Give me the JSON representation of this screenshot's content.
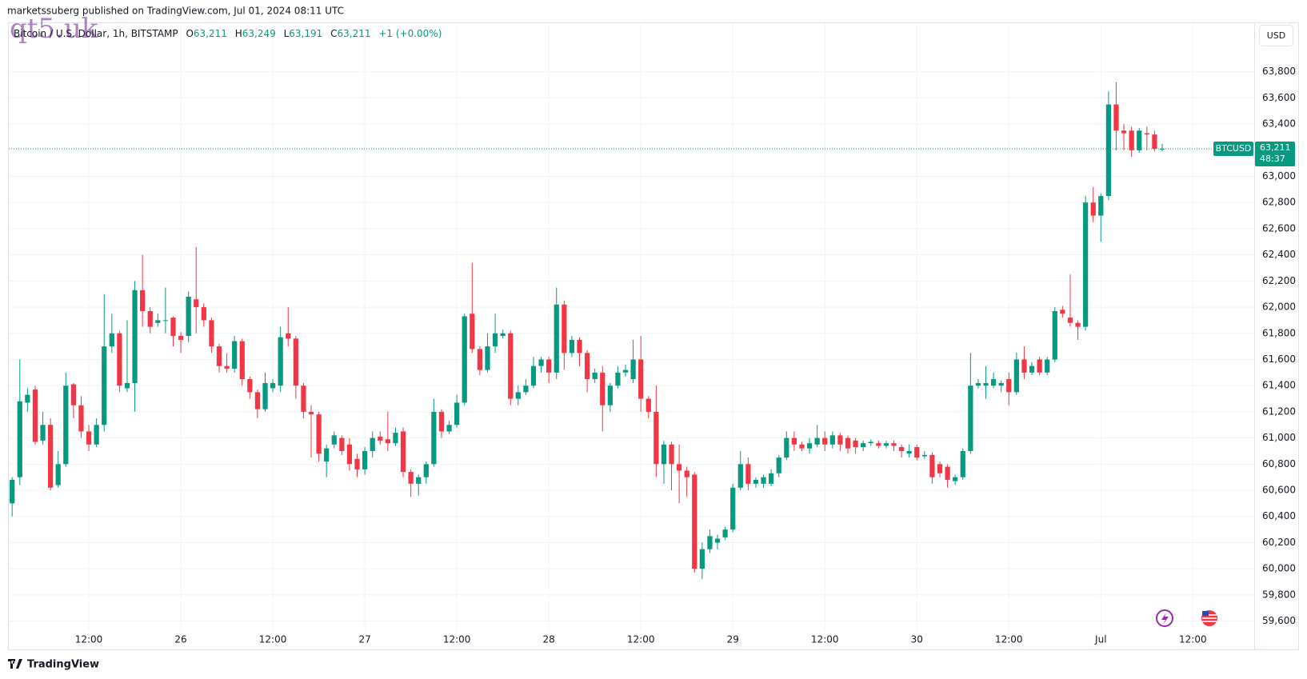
{
  "header": {
    "published": "marketssuberg published on TradingView.com, Jul 01, 2024 08:11 UTC",
    "watermark": "qt5.uk"
  },
  "legend": {
    "symbol": "Bitcoin / U.S. Dollar, 1h, BITSTAMP",
    "o_label": "O",
    "o": "63,211",
    "h_label": "H",
    "h": "63,249",
    "l_label": "L",
    "l": "63,191",
    "c_label": "C",
    "c": "63,211",
    "change": "+1 (+0.00%)"
  },
  "currency_button": "USD",
  "price_tag": {
    "symbol": "BTCUSD",
    "price": "63,211",
    "countdown": "48:37"
  },
  "footer": {
    "brand": "TradingView"
  },
  "chart_data": {
    "type": "candlestick",
    "up_color": "#089981",
    "down_color": "#f23645",
    "grid": true,
    "open": [
      60500,
      60700,
      61270,
      61370,
      60980,
      61100,
      60640,
      60800,
      61410,
      61250,
      61050,
      60950,
      61100,
      61700,
      61800,
      61380,
      61420,
      62130,
      61970,
      61880,
      61900,
      61920,
      61780,
      61780,
      62060,
      62000,
      61900,
      61700,
      61550,
      61530,
      61740,
      61450,
      61350,
      61220,
      61380,
      61400,
      61800,
      61760,
      61400,
      61200,
      61180,
      60820,
      60950,
      61000,
      60950,
      60840,
      60760,
      60900,
      61010,
      60990,
      60960,
      61050,
      60740,
      60650,
      60700,
      60800,
      61200,
      61050,
      61100,
      61270,
      61950,
      61680,
      61520,
      61700,
      61780,
      61800,
      61300,
      61350,
      61400,
      61550,
      61600,
      61500,
      62020,
      61650,
      61750,
      61650,
      61450,
      61500,
      61250,
      61400,
      61500,
      61450,
      61600,
      61300,
      61200,
      60800,
      60950,
      60800,
      60750,
      60720,
      60000,
      60150,
      60200,
      60240,
      60300,
      60620,
      60800,
      60650,
      60650,
      60650,
      60730,
      60850,
      61000,
      60950,
      60920,
      60950,
      61000,
      60950,
      61020,
      61000,
      60980,
      60930,
      60960,
      60960,
      60940,
      60960,
      60930,
      60880,
      60930,
      60860,
      60870,
      60800,
      60780,
      60670,
      60700,
      60900,
      61400,
      61400,
      61400,
      61400,
      61450,
      61350,
      61600,
      61500,
      61600,
      61500,
      61600,
      61980,
      61920,
      61880,
      61850,
      62800,
      62700,
      62850,
      63550,
      63350,
      63350,
      63200,
      63330,
      63320,
      63211
    ],
    "high": [
      60700,
      61600,
      61380,
      61400,
      61200,
      61150,
      60900,
      61500,
      61420,
      61320,
      61100,
      61150,
      62100,
      61950,
      61820,
      61900,
      62200,
      62400,
      62000,
      61950,
      62150,
      61930,
      61810,
      62120,
      62460,
      62030,
      61920,
      61720,
      61650,
      61780,
      61760,
      61470,
      61370,
      61500,
      61450,
      61850,
      62000,
      61780,
      61420,
      61250,
      61200,
      60950,
      61050,
      61020,
      61000,
      60880,
      60930,
      61050,
      61050,
      61200,
      61080,
      61080,
      60760,
      60720,
      60820,
      61300,
      61220,
      61130,
      61330,
      61950,
      62340,
      61700,
      61800,
      61950,
      61830,
      61820,
      61400,
      61450,
      61620,
      61620,
      61620,
      62150,
      62050,
      61780,
      61770,
      61670,
      61530,
      61550,
      61420,
      61550,
      61560,
      61750,
      61780,
      61320,
      61400,
      60980,
      60970,
      60950,
      60780,
      60740,
      60200,
      60300,
      60260,
      60320,
      60650,
      60900,
      60850,
      60700,
      60720,
      60760,
      60870,
      61050,
      61050,
      60970,
      61000,
      61100,
      61050,
      61050,
      61040,
      61020,
      61000,
      60980,
      60990,
      60980,
      60980,
      60980,
      60950,
      60950,
      60950,
      60900,
      60890,
      60820,
      60800,
      60720,
      60920,
      61650,
      61450,
      61550,
      61500,
      61440,
      61500,
      61650,
      61700,
      61580,
      61620,
      61620,
      62000,
      62010,
      62250,
      61900,
      62850,
      62920,
      62870,
      63650,
      63720,
      63400,
      63380,
      63370,
      63380,
      63350,
      63249
    ],
    "low": [
      60400,
      60640,
      61200,
      60950,
      60950,
      60600,
      60620,
      60780,
      61150,
      61000,
      60900,
      60930,
      61050,
      61650,
      61350,
      61350,
      61200,
      61850,
      61800,
      61850,
      61800,
      61700,
      61650,
      61730,
      61800,
      61850,
      61650,
      61500,
      61500,
      61500,
      61400,
      61300,
      61150,
      61200,
      61350,
      61350,
      61700,
      61300,
      61150,
      60850,
      60820,
      60700,
      60920,
      60870,
      60750,
      60700,
      60720,
      60850,
      60950,
      60900,
      60940,
      60700,
      60550,
      60560,
      60650,
      60780,
      61000,
      61030,
      61080,
      61250,
      61650,
      61480,
      61500,
      61650,
      61760,
      61250,
      61250,
      61330,
      61380,
      61500,
      61420,
      61450,
      61520,
      61620,
      61550,
      61350,
      61420,
      61050,
      61200,
      61380,
      61470,
      61420,
      61200,
      61150,
      60700,
      60650,
      60600,
      60500,
      60550,
      59970,
      59920,
      60120,
      60150,
      60220,
      60280,
      60600,
      60600,
      60620,
      60620,
      60630,
      60700,
      60830,
      60900,
      60900,
      60880,
      60930,
      60900,
      60920,
      60900,
      60880,
      60880,
      60900,
      60940,
      60920,
      60920,
      60900,
      60850,
      60850,
      60830,
      60840,
      60650,
      60700,
      60620,
      60640,
      60680,
      60880,
      61380,
      61300,
      61380,
      61350,
      61250,
      61330,
      61450,
      61480,
      61480,
      61480,
      61580,
      61920,
      61850,
      61750,
      61820,
      62650,
      62500,
      62820,
      63200,
      63200,
      63150,
      63180,
      63200,
      63190,
      63191
    ],
    "close": [
      60680,
      61280,
      61330,
      60970,
      61100,
      60620,
      60800,
      61400,
      61250,
      61050,
      60950,
      61100,
      61700,
      61800,
      61400,
      61420,
      62130,
      61970,
      61850,
      61900,
      61900,
      61780,
      61750,
      62080,
      62000,
      61900,
      61700,
      61550,
      61530,
      61740,
      61450,
      61350,
      61220,
      61420,
      61420,
      61770,
      61760,
      61400,
      61200,
      61180,
      60880,
      60920,
      61020,
      60900,
      60800,
      60760,
      60900,
      61000,
      60980,
      60960,
      61040,
      60740,
      60650,
      60700,
      60800,
      61200,
      61050,
      61100,
      61270,
      61930,
      61680,
      61520,
      61700,
      61800,
      61800,
      61300,
      61350,
      61400,
      61550,
      61600,
      61500,
      62020,
      61650,
      61750,
      61650,
      61450,
      61500,
      61250,
      61400,
      61500,
      61520,
      61600,
      61300,
      61200,
      60800,
      60950,
      60800,
      60750,
      60700,
      60000,
      60150,
      60250,
      60230,
      60300,
      60620,
      60800,
      60650,
      60680,
      60700,
      60730,
      60850,
      61000,
      60950,
      60920,
      60960,
      61000,
      60950,
      61020,
      60950,
      60920,
      60930,
      60960,
      60970,
      60940,
      60960,
      60940,
      60900,
      60900,
      60850,
      60870,
      60700,
      60730,
      60680,
      60700,
      60900,
      61400,
      61420,
      61420,
      61450,
      61420,
      61350,
      61600,
      61500,
      61550,
      61500,
      61600,
      61970,
      61950,
      61880,
      61850,
      62800,
      62700,
      62850,
      63550,
      63350,
      63330,
      63200,
      63350,
      63320,
      63210,
      63211
    ],
    "xlim": [
      -0.5,
      162
    ],
    "xticks": [
      {
        "value": 10,
        "label": "12:00"
      },
      {
        "value": 22,
        "label": "26"
      },
      {
        "value": 34,
        "label": "12:00"
      },
      {
        "value": 46,
        "label": "27"
      },
      {
        "value": 58,
        "label": "12:00"
      },
      {
        "value": 70,
        "label": "28"
      },
      {
        "value": 82,
        "label": "12:00"
      },
      {
        "value": 94,
        "label": "29"
      },
      {
        "value": 106,
        "label": "12:00"
      },
      {
        "value": 118,
        "label": "30"
      },
      {
        "value": 130,
        "label": "12:00"
      },
      {
        "value": 142,
        "label": "Jul"
      },
      {
        "value": 154,
        "label": "12:00"
      }
    ],
    "ylim": [
      59524,
      64000
    ],
    "yticks": [
      {
        "value": 59600,
        "label": "59,600"
      },
      {
        "value": 59800,
        "label": "59,800"
      },
      {
        "value": 60000,
        "label": "60,000"
      },
      {
        "value": 60200,
        "label": "60,200"
      },
      {
        "value": 60400,
        "label": "60,400"
      },
      {
        "value": 60600,
        "label": "60,600"
      },
      {
        "value": 60800,
        "label": "60,800"
      },
      {
        "value": 61000,
        "label": "61,000"
      },
      {
        "value": 61200,
        "label": "61,200"
      },
      {
        "value": 61400,
        "label": "61,400"
      },
      {
        "value": 61600,
        "label": "61,600"
      },
      {
        "value": 61800,
        "label": "61,800"
      },
      {
        "value": 62000,
        "label": "62,000"
      },
      {
        "value": 62200,
        "label": "62,200"
      },
      {
        "value": 62400,
        "label": "62,400"
      },
      {
        "value": 62600,
        "label": "62,600"
      },
      {
        "value": 62800,
        "label": "62,800"
      },
      {
        "value": 63000,
        "label": "63,000"
      },
      {
        "value": 63200,
        "label": "63,200"
      },
      {
        "value": 63400,
        "label": "63,400"
      },
      {
        "value": 63600,
        "label": "63,600"
      },
      {
        "value": 63800,
        "label": "63,800"
      }
    ]
  }
}
